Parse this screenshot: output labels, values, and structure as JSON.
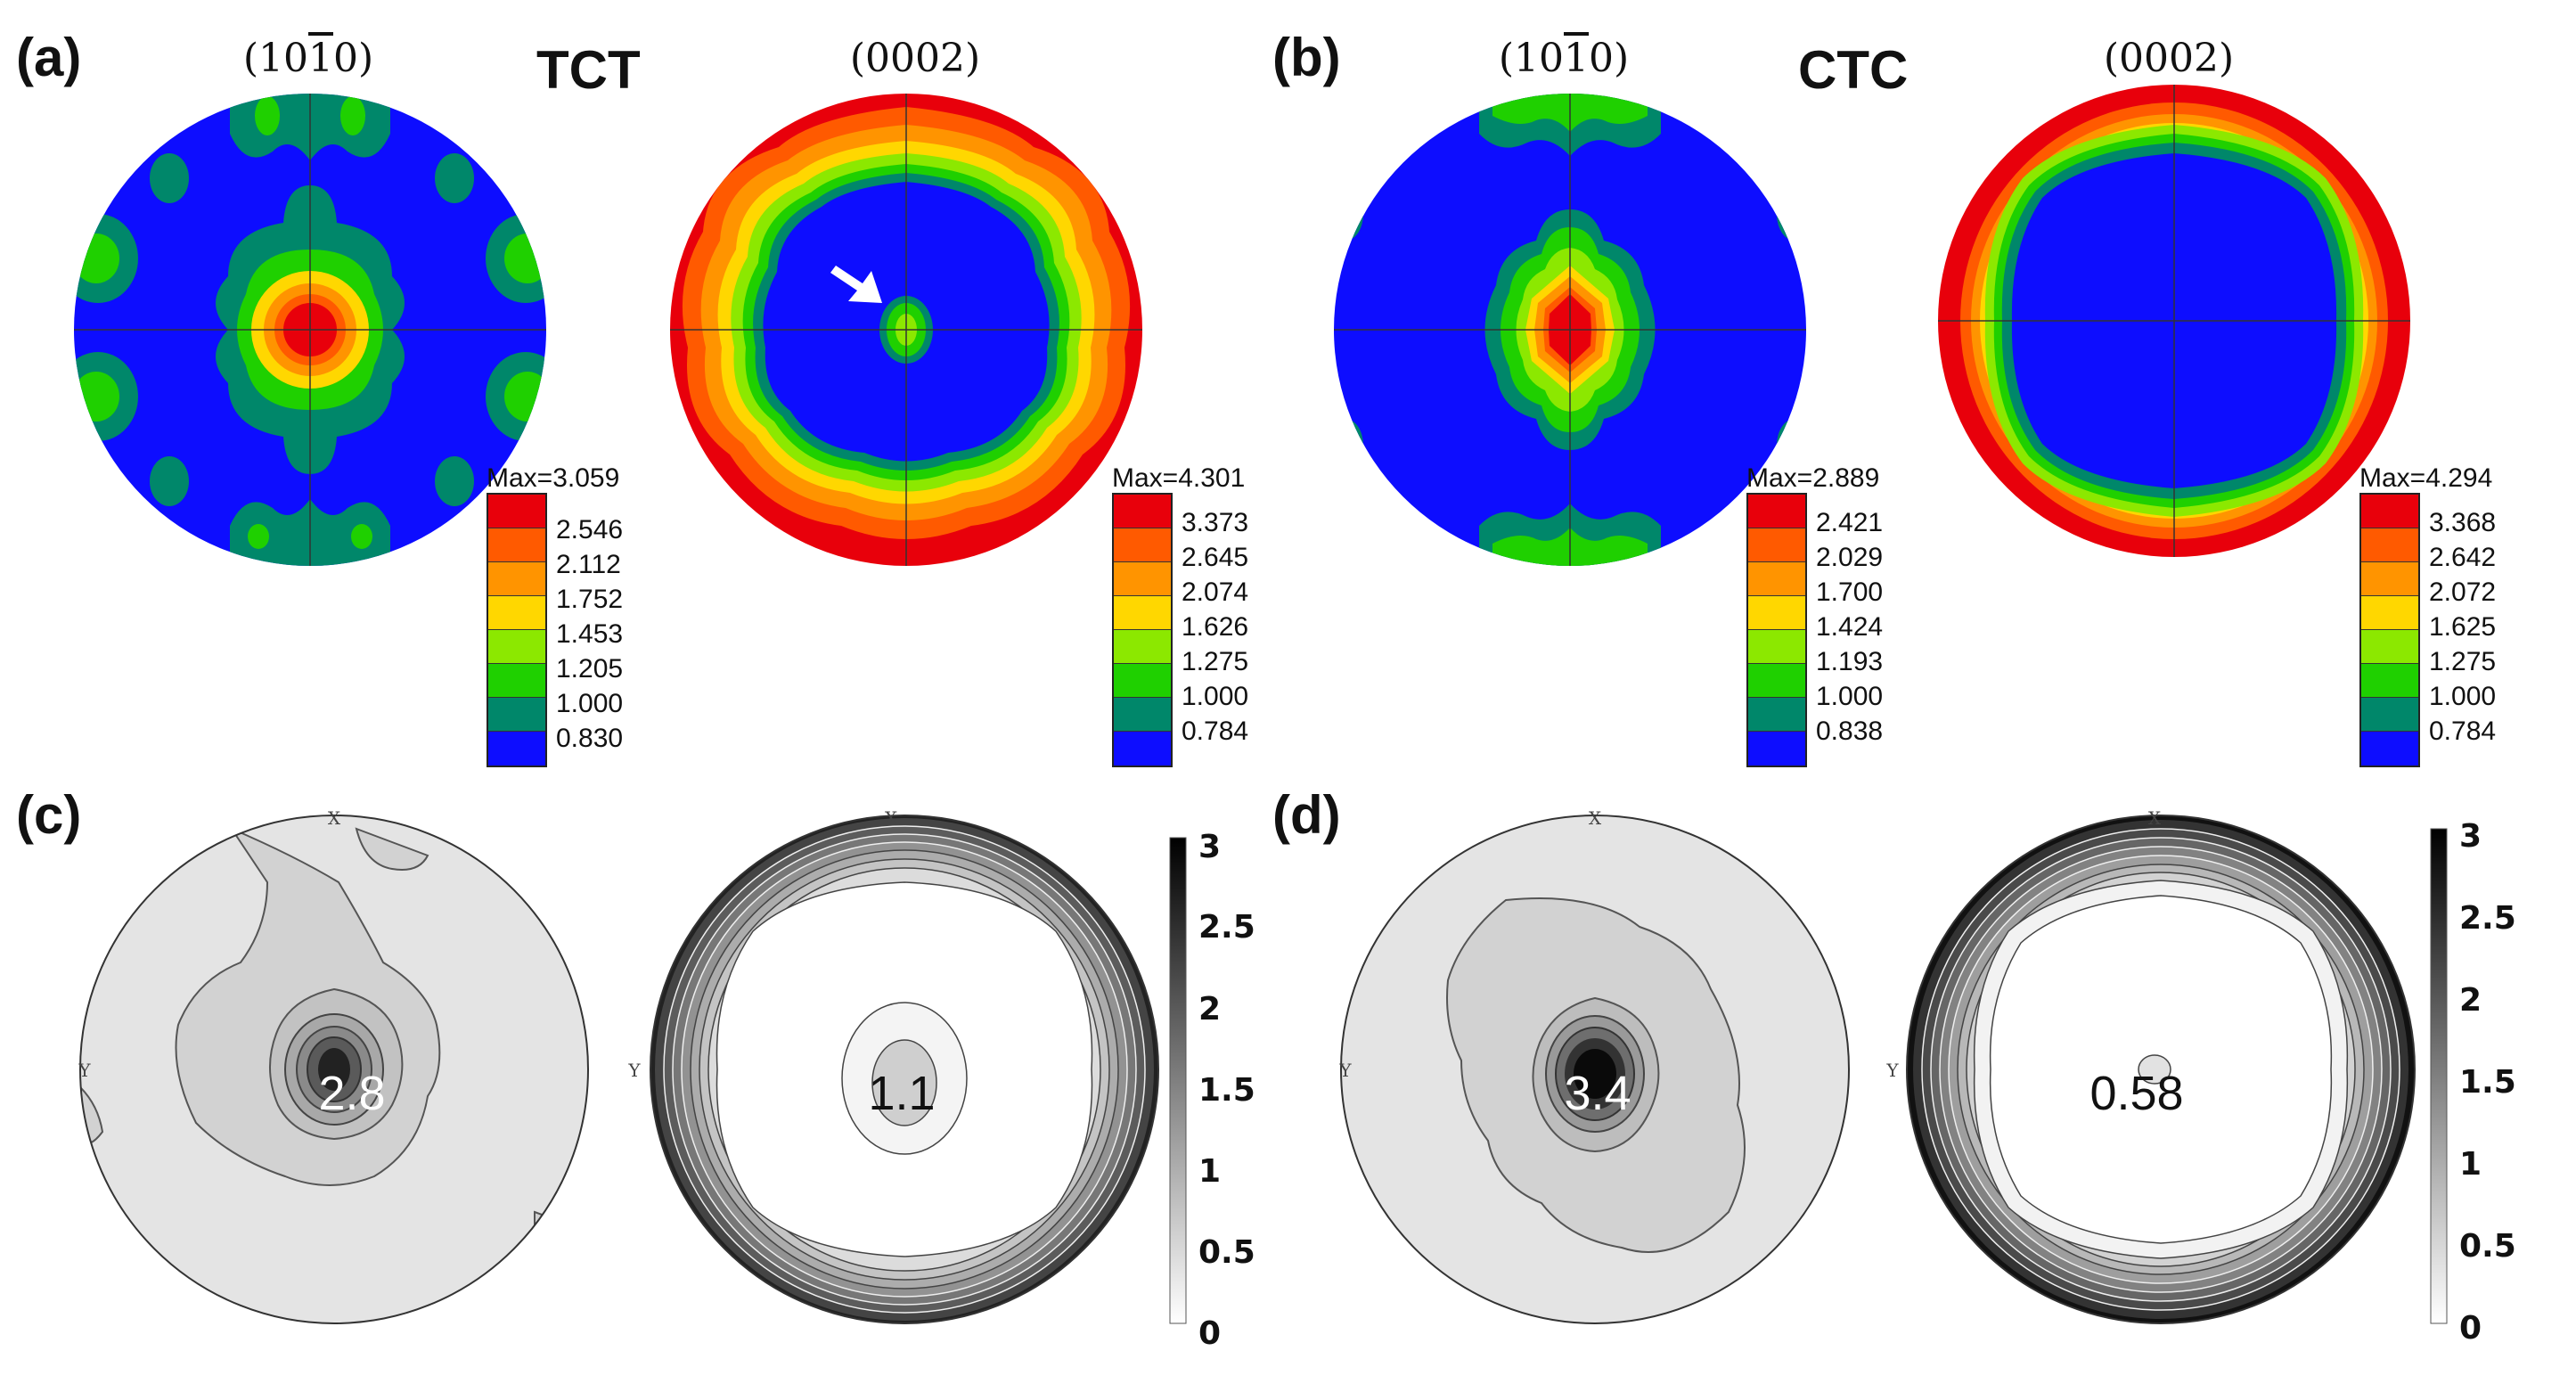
{
  "panels": {
    "a": {
      "label": "(a)",
      "mode": "TCT",
      "plane_left": "(1010)",
      "plane_right": "(0002)"
    },
    "b": {
      "label": "(b)",
      "mode": "CTC",
      "plane_left": "(1010)",
      "plane_right": "(0002)"
    },
    "c": {
      "label": "(c)",
      "peak_left": "2.8",
      "peak_right": "1.1"
    },
    "d": {
      "label": "(d)",
      "peak_left": "3.4",
      "peak_right": "0.58"
    }
  },
  "legends": {
    "a_left": {
      "max": "Max=3.059",
      "levels": [
        "2.546",
        "2.112",
        "1.752",
        "1.453",
        "1.205",
        "1.000",
        "0.830"
      ]
    },
    "a_right": {
      "max": "Max=4.301",
      "levels": [
        "3.373",
        "2.645",
        "2.074",
        "1.626",
        "1.275",
        "1.000",
        "0.784"
      ]
    },
    "b_left": {
      "max": "Max=2.889",
      "levels": [
        "2.421",
        "2.029",
        "1.700",
        "1.424",
        "1.193",
        "1.000",
        "0.838"
      ]
    },
    "b_right": {
      "max": "Max=4.294",
      "levels": [
        "3.368",
        "2.642",
        "2.072",
        "1.625",
        "1.275",
        "1.000",
        "0.784"
      ]
    }
  },
  "colors": {
    "legend_fill": [
      "#e8000b",
      "#ff5a00",
      "#ff9400",
      "#ffd700",
      "#8ce800",
      "#1fd000",
      "#00876a",
      "#0d0dff"
    ]
  },
  "gray_scale": {
    "ticks": [
      "3",
      "2.5",
      "2",
      "1.5",
      "1",
      "0.5",
      "0"
    ]
  },
  "axis_labels": {
    "x": "X",
    "y": "Y"
  }
}
